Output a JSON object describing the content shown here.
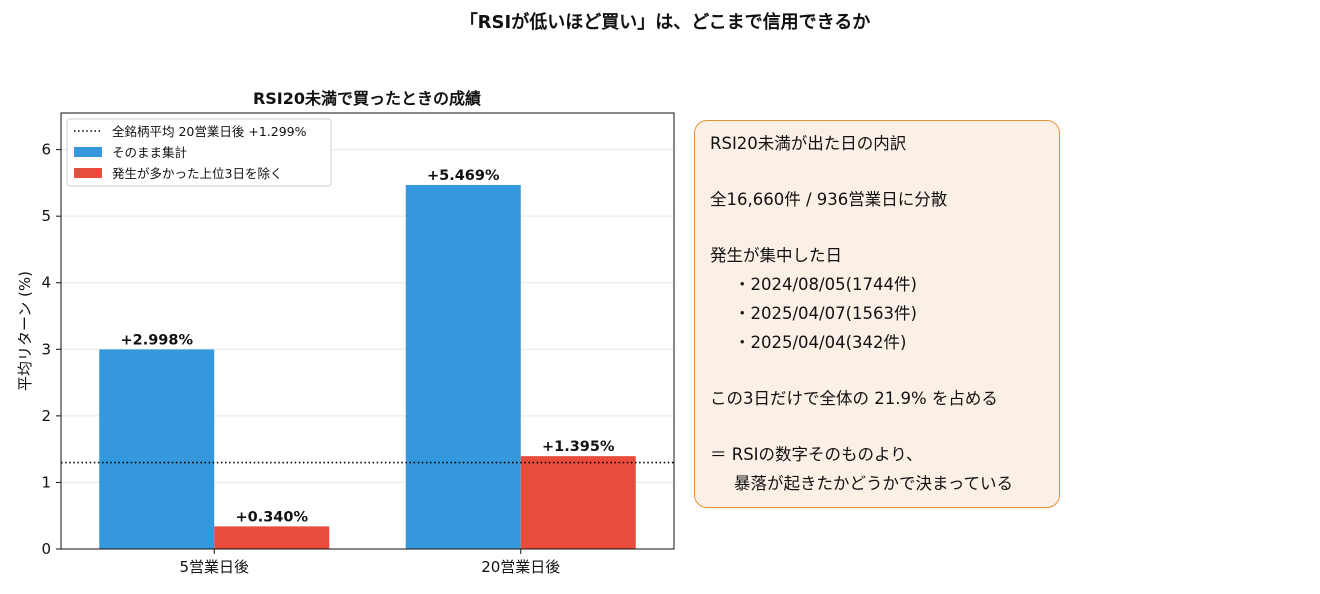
{
  "page_title": "「RSIが低いほど買い」は、どこまで信用できるか",
  "chart_data": {
    "type": "bar",
    "title": "RSI20未満で買ったときの成績",
    "categories": [
      "5営業日後",
      "20営業日後"
    ],
    "series": [
      {
        "name": "そのまま集計",
        "values": [
          2.998,
          5.469
        ],
        "labels": [
          "+2.998%",
          "+5.469%"
        ],
        "color": "#3598dc"
      },
      {
        "name": "発生が多かった上位3日を除く",
        "values": [
          0.34,
          1.395
        ],
        "labels": [
          "+0.340%",
          "+1.395%"
        ],
        "color": "#e74c3c"
      }
    ],
    "reference_line": {
      "name": "全銘柄平均 20営業日後 +1.299%",
      "value": 1.299,
      "style": "dotted",
      "color": "#000000"
    },
    "xlabel": "",
    "ylabel": "平均リターン (%)",
    "ylim": [
      0,
      6.55
    ],
    "yticks": [
      "0",
      "1",
      "2",
      "3",
      "4",
      "5",
      "6"
    ],
    "grid": true,
    "legend_position": "top-left"
  },
  "info_box": {
    "heading": "RSI20未満が出た日の内訳",
    "summary": "全16,660件 / 936営業日に分散",
    "concentration_heading": "発生が集中した日",
    "dates": [
      "・2024/08/05(1744件)",
      "・2025/04/07(1563件)",
      "・2025/04/04(342件)"
    ],
    "share": "この3日だけで全体の 21.9% を占める",
    "conclusion_1": "＝ RSIの数字そのものより、",
    "conclusion_2": "暴落が起きたかどうかで決まっている",
    "colors": {
      "background": "#fbf0e6",
      "border": "#e8913a"
    }
  }
}
